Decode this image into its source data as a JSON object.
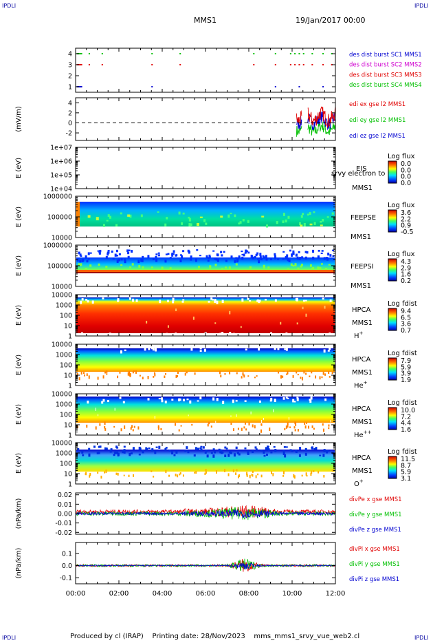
{
  "corner_text": "IPDLI",
  "header": {
    "mission": "MMS1",
    "date": "19/Jan/2017 00:00"
  },
  "footer": {
    "produced": "Produced by cl (IRAP)",
    "printing": "Printing date: 28/Nov/2023",
    "file": "mms_mms1_srvy_vue_web2.cl"
  },
  "colors": {
    "red": "#e00000",
    "green": "#00c000",
    "blue": "#0000d0",
    "magenta": "#d000d0"
  },
  "chart_data": [
    {
      "type": "scatter",
      "id": "burst",
      "ylim": [
        0.5,
        4.5
      ],
      "yticks": [
        "1",
        "2",
        "3",
        "4"
      ],
      "legend": [
        {
          "text": "des dist burst SC1 MMS1",
          "color": "#0000d0"
        },
        {
          "text": "des dist burst SC2 MMS2",
          "color": "#d000d0"
        },
        {
          "text": "des dist burst SC3 MMS3",
          "color": "#e00000"
        },
        {
          "text": "des dist burst SC4 MMS4",
          "color": "#00c000"
        }
      ],
      "burst_times": [
        0.1,
        0.6,
        1.2,
        3.5,
        4.8,
        8.2,
        9.2,
        9.9,
        10.1,
        10.3,
        10.5,
        10.9,
        11.4,
        11.8
      ]
    },
    {
      "type": "line",
      "id": "edi",
      "ylabel": "(mV/m)",
      "ylim": [
        -3.5,
        5
      ],
      "yticks": [
        "-2",
        "0",
        "2",
        "4"
      ],
      "legend": [
        {
          "text": "edi ex gse l2 MMS1",
          "color": "#e00000"
        },
        {
          "text": "edi ey gse l2 MMS1",
          "color": "#00c000"
        },
        {
          "text": "edi ez gse l2 MMS1",
          "color": "#0000d0"
        }
      ]
    },
    {
      "type": "heatmap",
      "id": "eis",
      "ylabel": "E (eV)",
      "yticks": [
        "1e+07",
        "1e+06",
        "1e+05",
        "1e+04"
      ],
      "labels": [
        "EIS",
        "MMS1"
      ],
      "overlay": "srvy electron to",
      "cbar_title": "Log flux",
      "cbar_ticks": [
        "0.0",
        "0.0",
        "0.0",
        "0.0"
      ]
    },
    {
      "type": "heatmap",
      "id": "feepse",
      "ylabel": "E (eV)",
      "yticks": [
        "1000000",
        "100000",
        "10000"
      ],
      "labels": [
        "FEEPSE",
        "MMS1"
      ],
      "cbar_title": "Log flux",
      "cbar_ticks": [
        "3.6",
        "2.2",
        "0.9",
        "-0.5"
      ]
    },
    {
      "type": "heatmap",
      "id": "feepsi",
      "ylabel": "E (eV)",
      "yticks": [
        "1000000",
        "100000",
        "10000"
      ],
      "labels": [
        "FEEPSI",
        "MMS1"
      ],
      "cbar_title": "Log flux",
      "cbar_ticks": [
        "4.3",
        "2.9",
        "1.6",
        "0.2"
      ]
    },
    {
      "type": "heatmap",
      "id": "hpca_h",
      "ylabel": "E (eV)",
      "yticks": [
        "10000",
        "1000",
        "100",
        "10",
        "1"
      ],
      "labels": [
        "HPCA",
        "MMS1"
      ],
      "species": "H",
      "species_sup": "+",
      "cbar_title": "Log fdist",
      "cbar_ticks": [
        "9.4",
        "6.5",
        "3.6",
        "0.7"
      ]
    },
    {
      "type": "heatmap",
      "id": "hpca_he",
      "ylabel": "E (eV)",
      "yticks": [
        "10000",
        "1000",
        "100",
        "10",
        "1"
      ],
      "labels": [
        "HPCA",
        "MMS1"
      ],
      "species": "He",
      "species_sup": "+",
      "cbar_title": "Log fdist",
      "cbar_ticks": [
        "7.9",
        "5.9",
        "3.9",
        "1.9"
      ]
    },
    {
      "type": "heatmap",
      "id": "hpca_hepp",
      "ylabel": "E (eV)",
      "yticks": [
        "10000",
        "1000",
        "100",
        "10",
        "1"
      ],
      "labels": [
        "HPCA",
        "MMS1"
      ],
      "species": "He",
      "species_sup": "++",
      "cbar_title": "Log fdist",
      "cbar_ticks": [
        "10.0",
        "7.2",
        "4.4",
        "1.6"
      ]
    },
    {
      "type": "heatmap",
      "id": "hpca_o",
      "ylabel": "E (eV)",
      "yticks": [
        "10000",
        "1000",
        "100",
        "10",
        "1"
      ],
      "labels": [
        "HPCA",
        "MMS1"
      ],
      "species": "O",
      "species_sup": "+",
      "cbar_title": "Log fdist",
      "cbar_ticks": [
        "11.5",
        "8.7",
        "5.9",
        "3.1"
      ]
    },
    {
      "type": "line",
      "id": "divpe",
      "ylabel": "(nPa/km)",
      "ylim": [
        -0.022,
        0.022
      ],
      "yticks": [
        "0.02",
        "0.01",
        "0.00",
        "-0.01",
        "-0.02"
      ],
      "legend": [
        {
          "text": "divPe x gse MMS1",
          "color": "#e00000"
        },
        {
          "text": "divPe y gse MMS1",
          "color": "#00c000"
        },
        {
          "text": "divPe z gse MMS1",
          "color": "#0000d0"
        }
      ]
    },
    {
      "type": "line",
      "id": "divpi",
      "ylabel": "(nPa/km)",
      "ylim": [
        -0.15,
        0.19
      ],
      "yticks": [
        "0.1",
        "0.0",
        "-0.1"
      ],
      "legend": [
        {
          "text": "divPi x gse MMS1",
          "color": "#e00000"
        },
        {
          "text": "divPi y gse MMS1",
          "color": "#00c000"
        },
        {
          "text": "divPi z gse MMS1",
          "color": "#0000d0"
        }
      ]
    }
  ],
  "xaxis": {
    "ticks": [
      "00:00",
      "02:00",
      "04:00",
      "06:00",
      "08:00",
      "10:00",
      "12:00"
    ],
    "xlim": [
      "00:00",
      "12:00"
    ]
  }
}
